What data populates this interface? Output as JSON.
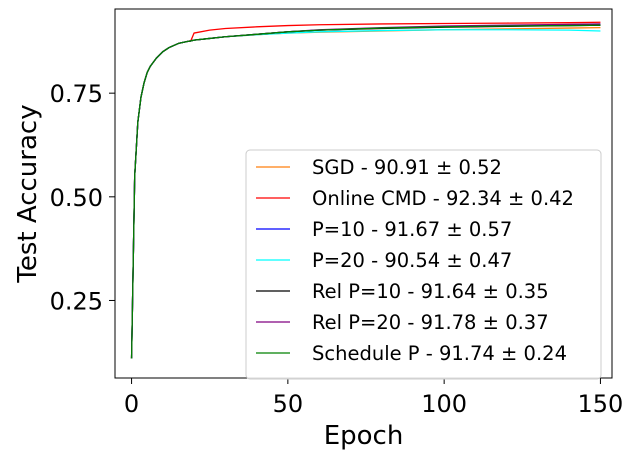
{
  "chart_data": {
    "type": "line",
    "title": "",
    "xlabel": "Epoch",
    "ylabel": "Test Accuracy",
    "xlim": [
      -5.3,
      153.7
    ],
    "ylim": [
      0.063,
      0.953
    ],
    "xticks": [
      0,
      50,
      100,
      150
    ],
    "yticks": [
      0.25,
      0.5,
      0.75
    ],
    "ytick_labels": [
      "0.25",
      "0.50",
      "0.75"
    ],
    "grid": false,
    "legend_position": "lower-right",
    "x": [
      0,
      1,
      2,
      3,
      4,
      5,
      6,
      8,
      10,
      12,
      15,
      18,
      19,
      20,
      25,
      30,
      40,
      50,
      60,
      80,
      100,
      120,
      140,
      150
    ],
    "series": [
      {
        "name": "SGD",
        "label": "SGD - 90.91 ± 0.52",
        "color": "#ff7f0e",
        "values": [
          0.11,
          0.55,
          0.68,
          0.74,
          0.775,
          0.8,
          0.815,
          0.835,
          0.85,
          0.86,
          0.87,
          0.875,
          0.876,
          0.878,
          0.882,
          0.886,
          0.891,
          0.895,
          0.897,
          0.9,
          0.903,
          0.905,
          0.907,
          0.908
        ]
      },
      {
        "name": "Online CMD",
        "label": "Online CMD - 92.34 ± 0.42",
        "color": "#ff0000",
        "values": [
          0.11,
          0.55,
          0.68,
          0.74,
          0.775,
          0.8,
          0.815,
          0.835,
          0.85,
          0.86,
          0.87,
          0.875,
          0.877,
          0.895,
          0.902,
          0.906,
          0.91,
          0.913,
          0.915,
          0.917,
          0.918,
          0.919,
          0.92,
          0.921
        ]
      },
      {
        "name": "P=10",
        "label": "P=10 - 91.67 ± 0.57",
        "color": "#0000ff",
        "values": [
          0.11,
          0.55,
          0.68,
          0.74,
          0.775,
          0.8,
          0.815,
          0.835,
          0.85,
          0.86,
          0.87,
          0.875,
          0.876,
          0.878,
          0.882,
          0.886,
          0.892,
          0.898,
          0.902,
          0.907,
          0.91,
          0.912,
          0.914,
          0.915
        ]
      },
      {
        "name": "P=20",
        "label": "P=20 - 90.54 ± 0.47",
        "color": "#00ffff",
        "values": [
          0.11,
          0.55,
          0.68,
          0.74,
          0.775,
          0.8,
          0.815,
          0.835,
          0.85,
          0.86,
          0.87,
          0.875,
          0.876,
          0.878,
          0.882,
          0.886,
          0.891,
          0.895,
          0.898,
          0.901,
          0.903,
          0.903,
          0.902,
          0.9
        ]
      },
      {
        "name": "Rel P=10",
        "label": "Rel P=10 - 91.64 ± 0.35",
        "color": "#000000",
        "values": [
          0.11,
          0.55,
          0.68,
          0.74,
          0.775,
          0.8,
          0.815,
          0.835,
          0.85,
          0.86,
          0.87,
          0.875,
          0.876,
          0.878,
          0.882,
          0.886,
          0.892,
          0.898,
          0.902,
          0.906,
          0.909,
          0.911,
          0.913,
          0.914
        ]
      },
      {
        "name": "Rel P=20",
        "label": "Rel P=20 - 91.78 ± 0.37",
        "color": "#800080",
        "values": [
          0.11,
          0.55,
          0.68,
          0.74,
          0.775,
          0.8,
          0.815,
          0.835,
          0.85,
          0.86,
          0.87,
          0.875,
          0.876,
          0.878,
          0.882,
          0.886,
          0.892,
          0.898,
          0.903,
          0.908,
          0.912,
          0.914,
          0.916,
          0.917
        ]
      },
      {
        "name": "Schedule P",
        "label": "Schedule P - 91.74 ± 0.24",
        "color": "#008000",
        "values": [
          0.11,
          0.55,
          0.68,
          0.74,
          0.775,
          0.8,
          0.815,
          0.835,
          0.85,
          0.86,
          0.87,
          0.875,
          0.876,
          0.878,
          0.882,
          0.886,
          0.892,
          0.898,
          0.902,
          0.907,
          0.91,
          0.912,
          0.913,
          0.914
        ]
      }
    ]
  }
}
